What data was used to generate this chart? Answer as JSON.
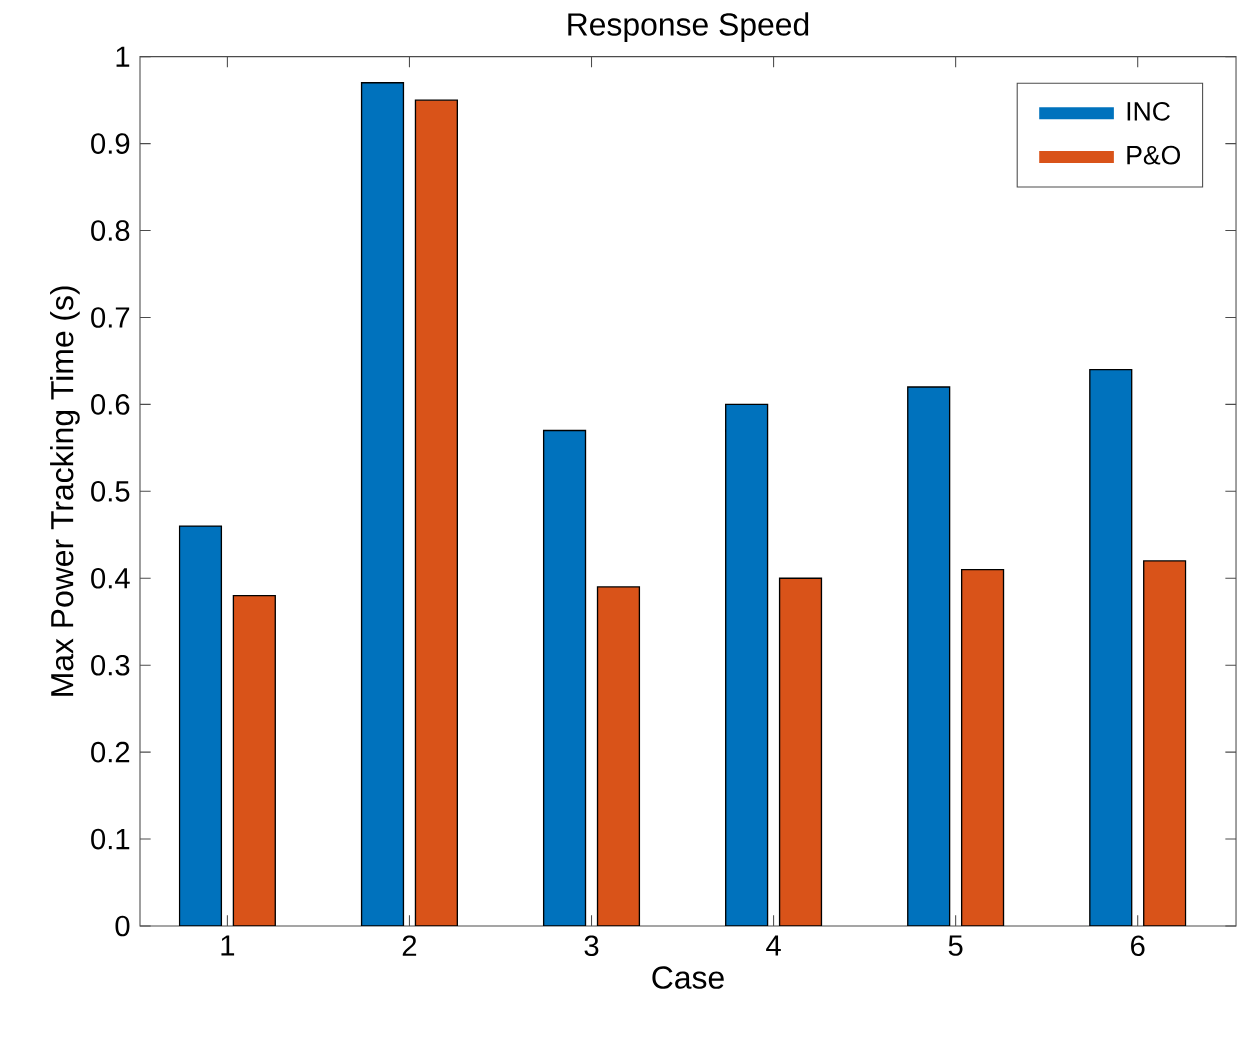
{
  "chart_data": {
    "type": "bar",
    "title": "Response Speed",
    "xlabel": "Case",
    "ylabel": "Max Power Tracking Time (s)",
    "categories": [
      "1",
      "2",
      "3",
      "4",
      "5",
      "6"
    ],
    "series": [
      {
        "name": "INC",
        "color": "#0072bd",
        "values": [
          0.46,
          0.97,
          0.57,
          0.6,
          0.62,
          0.64
        ]
      },
      {
        "name": "P&O",
        "color": "#d95319",
        "values": [
          0.38,
          0.95,
          0.39,
          0.4,
          0.41,
          0.42
        ]
      }
    ],
    "ylim": [
      0,
      1
    ],
    "yticks": [
      0,
      0.1,
      0.2,
      0.3,
      0.4,
      0.5,
      0.6,
      0.7,
      0.8,
      0.9,
      1
    ],
    "legend": "top right"
  }
}
